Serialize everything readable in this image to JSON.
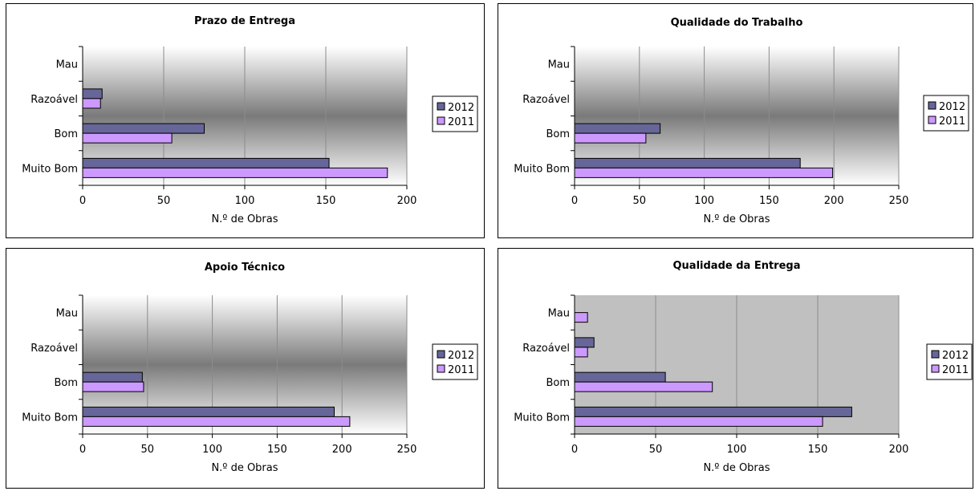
{
  "colors": {
    "series_2012": "#666699",
    "series_2011": "#CC99FF",
    "plot_gradient_edge": "#ffffff",
    "plot_gradient_center": "#7a7a7a",
    "plot_solid_gray": "#c0c0c0",
    "gridline": "#8c8c8c"
  },
  "chart_data": [
    {
      "type": "bar",
      "orientation": "horizontal",
      "title": "Prazo de Entrega",
      "xlabel": "N.º de Obras",
      "ylabel": "",
      "categories": [
        "Mau",
        "Razoável",
        "Bom",
        "Muito Bom"
      ],
      "series": [
        {
          "name": "2012",
          "values": [
            0,
            12,
            75,
            152
          ]
        },
        {
          "name": "2011",
          "values": [
            0,
            11,
            55,
            188
          ]
        }
      ],
      "xlim": [
        0,
        200
      ],
      "xticks": [
        "0",
        "50",
        "100",
        "150",
        "200"
      ],
      "grid": true,
      "legend_position": "right",
      "plot_background": "gradient"
    },
    {
      "type": "bar",
      "orientation": "horizontal",
      "title": "Qualidade do Trabalho",
      "xlabel": "N.º de Obras",
      "ylabel": "",
      "categories": [
        "Mau",
        "Razoável",
        "Bom",
        "Muito Bom"
      ],
      "series": [
        {
          "name": "2012",
          "values": [
            0,
            0,
            66,
            174
          ]
        },
        {
          "name": "2011",
          "values": [
            0,
            0,
            55,
            199
          ]
        }
      ],
      "xlim": [
        0,
        250
      ],
      "xticks": [
        "0",
        "50",
        "100",
        "150",
        "200",
        "250"
      ],
      "grid": true,
      "legend_position": "right",
      "plot_background": "gradient"
    },
    {
      "type": "bar",
      "orientation": "horizontal",
      "title": "Apoio Técnico",
      "xlabel": "N.º de Obras",
      "ylabel": "",
      "categories": [
        "Mau",
        "Razoável",
        "Bom",
        "Muito Bom"
      ],
      "series": [
        {
          "name": "2012",
          "values": [
            0,
            0,
            46,
            194
          ]
        },
        {
          "name": "2011",
          "values": [
            0,
            0,
            47,
            206
          ]
        }
      ],
      "xlim": [
        0,
        250
      ],
      "xticks": [
        "0",
        "50",
        "100",
        "150",
        "200",
        "250"
      ],
      "grid": true,
      "legend_position": "right",
      "plot_background": "gradient"
    },
    {
      "type": "bar",
      "orientation": "horizontal",
      "title": "Qualidade da Entrega",
      "xlabel": "N.º de Obras",
      "ylabel": "",
      "categories": [
        "Mau",
        "Razoável",
        "Bom",
        "Muito Bom"
      ],
      "series": [
        {
          "name": "2012",
          "values": [
            0,
            12,
            56,
            171
          ]
        },
        {
          "name": "2011",
          "values": [
            8,
            8,
            85,
            153
          ]
        }
      ],
      "xlim": [
        0,
        200
      ],
      "xticks": [
        "0",
        "50",
        "100",
        "150",
        "200"
      ],
      "grid": true,
      "legend_position": "right",
      "plot_background": "solid"
    }
  ]
}
